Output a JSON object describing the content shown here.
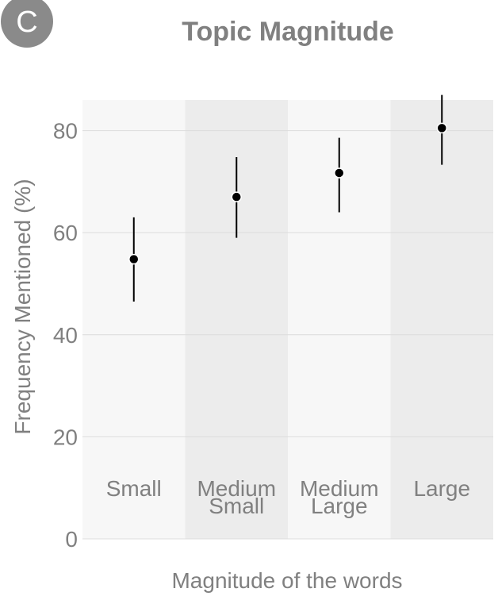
{
  "panel_label": "C",
  "chart_data": {
    "type": "scatter",
    "title": "Topic Magnitude",
    "xlabel": "Magnitude of the words",
    "ylabel": "Frequency Mentioned (%)",
    "ylim": [
      0,
      86
    ],
    "yticks": [
      0,
      20,
      40,
      60,
      80
    ],
    "grid": true,
    "error_bars": true,
    "categories": [
      {
        "label_lines": [
          "Small"
        ],
        "value": 54.8,
        "lower": 46.5,
        "upper": 63.0
      },
      {
        "label_lines": [
          "Medium",
          "Small"
        ],
        "value": 67.0,
        "lower": 59.0,
        "upper": 74.8
      },
      {
        "label_lines": [
          "Medium",
          "Large"
        ],
        "value": 71.7,
        "lower": 64.0,
        "upper": 78.6
      },
      {
        "label_lines": [
          "Large"
        ],
        "value": 80.5,
        "lower": 73.3,
        "upper": 87.0
      }
    ],
    "colors": {
      "band_light": "#f7f7f7",
      "band_dark": "#ececec",
      "grid": "#dcdcdc",
      "text": "#808080",
      "point": "#000000",
      "badge": "#8a8a8a"
    }
  }
}
